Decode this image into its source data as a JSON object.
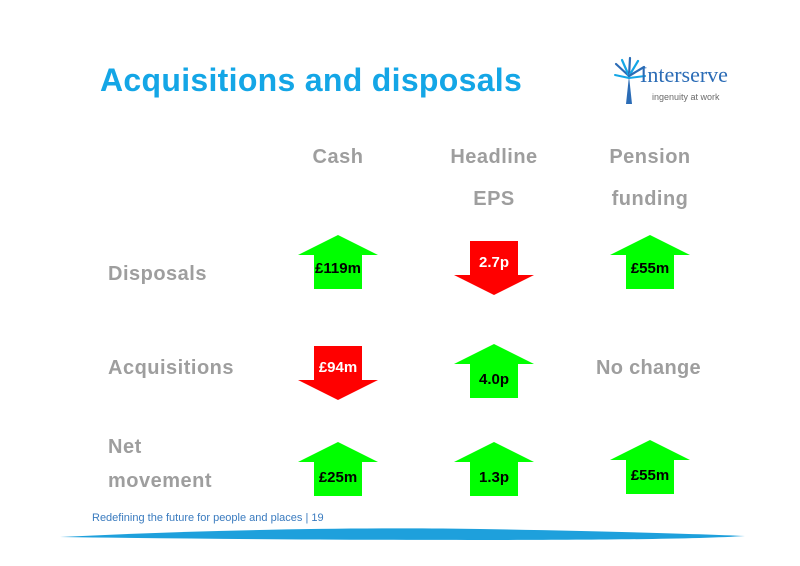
{
  "title": "Acquisitions and disposals",
  "logo": {
    "name": "Interserve",
    "tagline": "ingenuity at work"
  },
  "columns": [
    {
      "lines": [
        "Cash",
        ""
      ]
    },
    {
      "lines": [
        "Headline",
        "EPS"
      ]
    },
    {
      "lines": [
        "Pension",
        "funding"
      ]
    }
  ],
  "rows": [
    {
      "label_lines": [
        "Disposals",
        ""
      ],
      "cells": [
        {
          "direction": "up",
          "value": "£119m",
          "color": "#00ff00"
        },
        {
          "direction": "down",
          "value": "2.7p",
          "color": "#ff0000"
        },
        {
          "direction": "up",
          "value": "£55m",
          "color": "#00ff00"
        }
      ]
    },
    {
      "label_lines": [
        "Acquisitions",
        ""
      ],
      "cells": [
        {
          "direction": "down",
          "value": "£94m",
          "color": "#ff0000"
        },
        {
          "direction": "up",
          "value": "4.0p",
          "color": "#00ff00"
        },
        {
          "direction": "none",
          "value": "No change"
        }
      ]
    },
    {
      "label_lines": [
        "Net",
        "movement"
      ],
      "cells": [
        {
          "direction": "up",
          "value": "£25m",
          "color": "#00ff00"
        },
        {
          "direction": "up",
          "value": "1.3p",
          "color": "#00ff00"
        },
        {
          "direction": "up",
          "value": "£55m",
          "color": "#00ff00"
        }
      ]
    }
  ],
  "footer": {
    "text": "Redefining the future for people and places",
    "separator": "|",
    "page": "19"
  },
  "colors": {
    "title": "#14a6e6",
    "label_gray": "#9e9e9e",
    "footer_blue": "#3a7bbf",
    "wave_blue": "#1ea0dc",
    "up_green": "#00ff00",
    "down_red": "#ff0000"
  }
}
